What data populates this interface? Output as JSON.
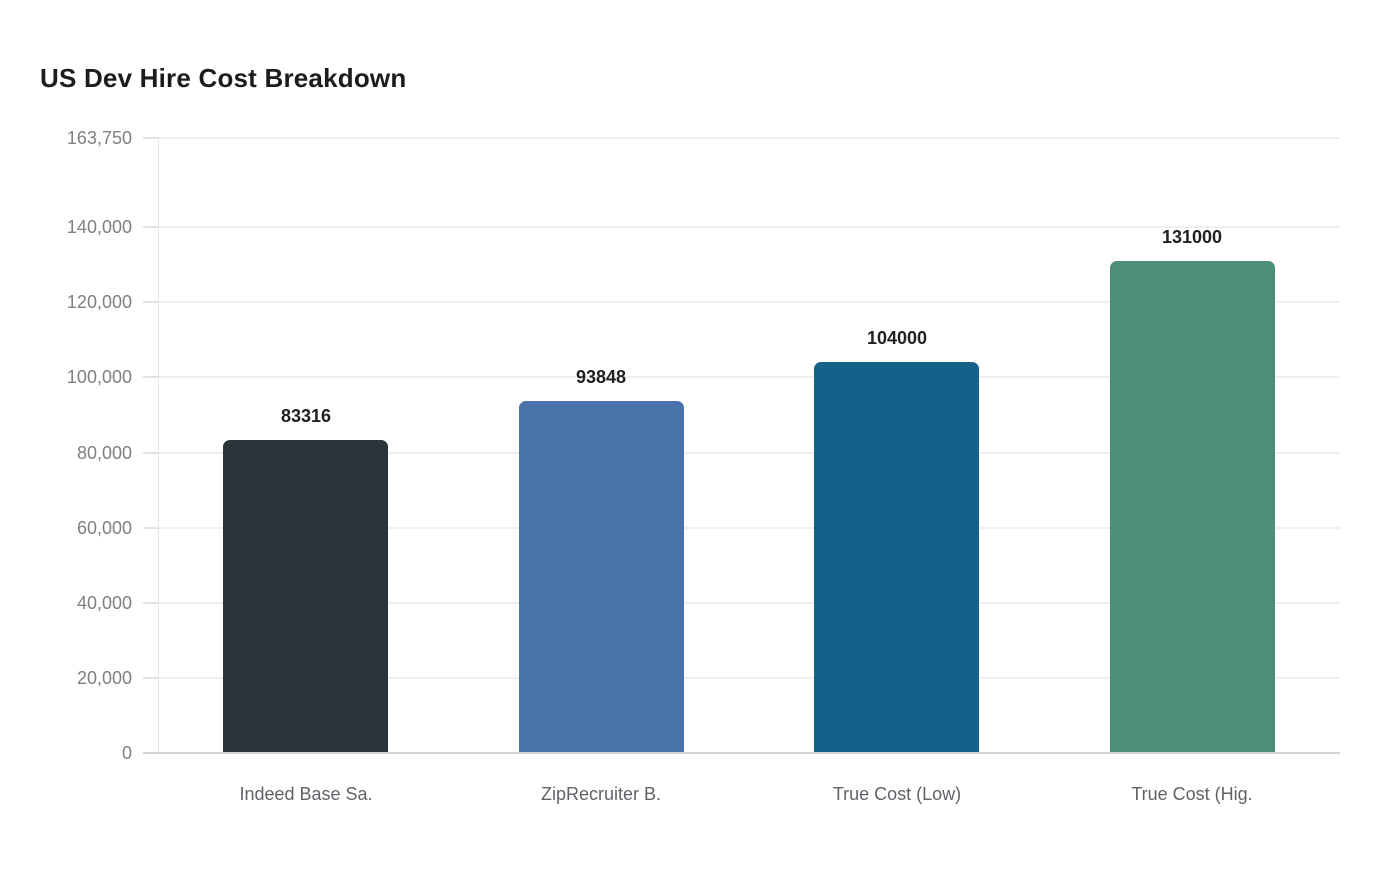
{
  "chart_data": {
    "type": "bar",
    "title": "US Dev Hire Cost Breakdown",
    "categories": [
      "Indeed Base Sa.",
      "ZipRecruiter B.",
      "True Cost (Low)",
      "True Cost (Hig."
    ],
    "values": [
      83316,
      93848,
      104000,
      131000
    ],
    "value_labels": [
      "83316",
      "93848",
      "104000",
      "131000"
    ],
    "bar_colors": [
      "#2b3438",
      "#4a72ab",
      "#16618a",
      "#4d8e7b"
    ],
    "xlabel": "",
    "ylabel": "",
    "ylim": [
      0,
      163750
    ],
    "yticks": [
      {
        "label": "163,750",
        "value": 163750
      },
      {
        "label": "140,000",
        "value": 140000
      },
      {
        "label": "120,000",
        "value": 120000
      },
      {
        "label": "100,000",
        "value": 100000
      },
      {
        "label": "80,000",
        "value": 80000
      },
      {
        "label": "60,000",
        "value": 60000
      },
      {
        "label": "40,000",
        "value": 40000
      },
      {
        "label": "20,000",
        "value": 20000
      },
      {
        "label": "0",
        "value": 0
      }
    ],
    "grid": "horizontal",
    "legend": "none"
  }
}
